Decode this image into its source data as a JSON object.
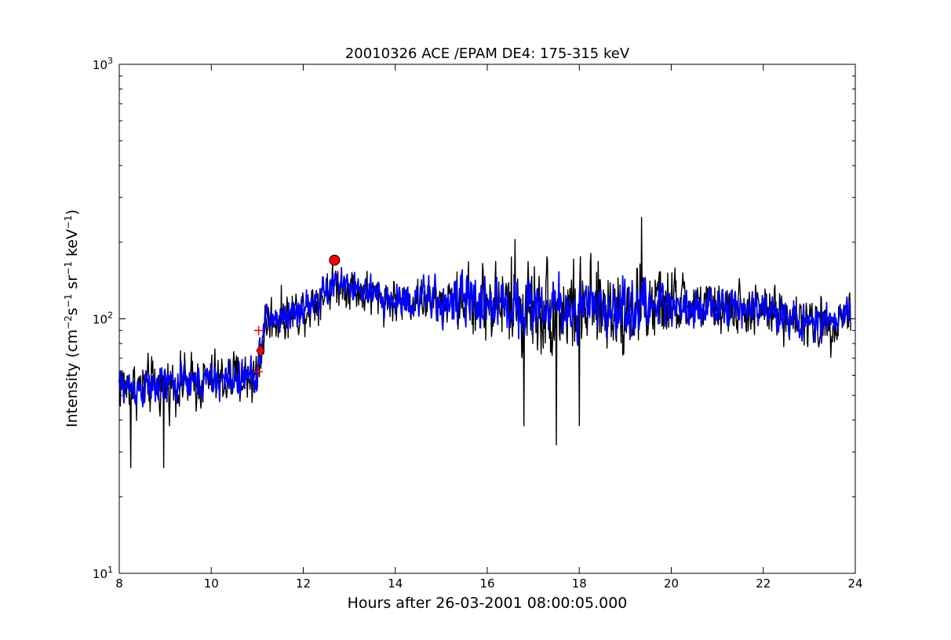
{
  "chart_data": {
    "type": "line",
    "title": "20010326 ACE /EPAM DE4: 175-315 keV",
    "xlabel": "Hours after 26-03-2001 08:00:05.000",
    "ylabel": {
      "prefix": "Intensity (cm",
      "sup1": "−2",
      "mid1": "s",
      "sup2": "−1",
      "mid2": "sr",
      "sup3": "−1",
      "mid3": "keV",
      "sup4": "−1",
      "suffix": ")"
    },
    "xlim": [
      8,
      24
    ],
    "ylim": [
      10,
      1000
    ],
    "yscale": "log",
    "x_ticks": [
      "8",
      "10",
      "12",
      "14",
      "16",
      "18",
      "20",
      "22",
      "24"
    ],
    "y_ticks": [
      {
        "base": "10",
        "exp": "1"
      },
      {
        "base": "10",
        "exp": "2"
      },
      {
        "base": "10",
        "exp": "3"
      }
    ],
    "grid": false,
    "series": [
      {
        "color": "#000000",
        "style": "raw",
        "profile": [
          [
            8.0,
            55
          ],
          [
            8.5,
            53
          ],
          [
            9.0,
            55
          ],
          [
            9.5,
            56
          ],
          [
            10.0,
            57
          ],
          [
            10.5,
            58
          ],
          [
            11.0,
            60
          ],
          [
            11.1,
            80
          ],
          [
            11.2,
            98
          ],
          [
            11.8,
            105
          ],
          [
            12.3,
            118
          ],
          [
            12.7,
            138
          ],
          [
            13.0,
            135
          ],
          [
            13.5,
            122
          ],
          [
            14.0,
            118
          ],
          [
            14.5,
            120
          ],
          [
            15.0,
            115
          ],
          [
            15.5,
            118
          ],
          [
            16.0,
            115
          ],
          [
            17.0,
            112
          ],
          [
            18.0,
            108
          ],
          [
            19.0,
            110
          ],
          [
            20.0,
            115
          ],
          [
            21.0,
            110
          ],
          [
            22.0,
            108
          ],
          [
            22.5,
            104
          ],
          [
            23.0,
            95
          ],
          [
            23.5,
            96
          ],
          [
            23.9,
            108
          ]
        ],
        "spread": [
          [
            8.0,
            0.09
          ],
          [
            11.0,
            0.09
          ],
          [
            11.5,
            0.08
          ],
          [
            13.0,
            0.07
          ],
          [
            15.0,
            0.07
          ],
          [
            16.0,
            0.13
          ],
          [
            16.6,
            0.16
          ],
          [
            19.5,
            0.14
          ],
          [
            20.5,
            0.09
          ],
          [
            23.9,
            0.08
          ]
        ],
        "spikes": [
          [
            19.35,
            250
          ],
          [
            8.97,
            26
          ],
          [
            17.5,
            32
          ],
          [
            16.8,
            38
          ],
          [
            18.0,
            38
          ],
          [
            8.25,
            26
          ],
          [
            16.6,
            205
          ]
        ]
      },
      {
        "color": "#0000ff",
        "style": "smoothed",
        "profile": [
          [
            8.0,
            55
          ],
          [
            8.5,
            53
          ],
          [
            9.0,
            55
          ],
          [
            9.5,
            56
          ],
          [
            10.0,
            57
          ],
          [
            10.5,
            58
          ],
          [
            11.0,
            60
          ],
          [
            11.1,
            80
          ],
          [
            11.2,
            98
          ],
          [
            11.8,
            105
          ],
          [
            12.3,
            118
          ],
          [
            12.7,
            138
          ],
          [
            13.0,
            135
          ],
          [
            13.5,
            122
          ],
          [
            14.0,
            118
          ],
          [
            14.5,
            120
          ],
          [
            15.0,
            115
          ],
          [
            15.5,
            118
          ],
          [
            16.0,
            115
          ],
          [
            17.0,
            112
          ],
          [
            18.0,
            108
          ],
          [
            19.0,
            110
          ],
          [
            20.0,
            115
          ],
          [
            21.0,
            110
          ],
          [
            22.0,
            108
          ],
          [
            22.5,
            104
          ],
          [
            23.0,
            95
          ],
          [
            23.5,
            96
          ],
          [
            23.9,
            108
          ]
        ],
        "spread": [
          [
            8.0,
            0.06
          ],
          [
            11.0,
            0.06
          ],
          [
            13.0,
            0.05
          ],
          [
            16.0,
            0.09
          ],
          [
            19.5,
            0.09
          ],
          [
            20.5,
            0.06
          ],
          [
            23.9,
            0.05
          ]
        ],
        "spikes": []
      }
    ],
    "markers": [
      {
        "shape": "circle",
        "x": 12.68,
        "y": 170,
        "color": "#ff0000"
      },
      {
        "shape": "diamond",
        "x": 11.07,
        "y": 75,
        "color": "#ff0000"
      },
      {
        "shape": "plus",
        "x": 11.03,
        "y": 90,
        "color": "#ff0000"
      },
      {
        "shape": "plus",
        "x": 11.02,
        "y": 62,
        "color": "#ff0000"
      }
    ]
  }
}
